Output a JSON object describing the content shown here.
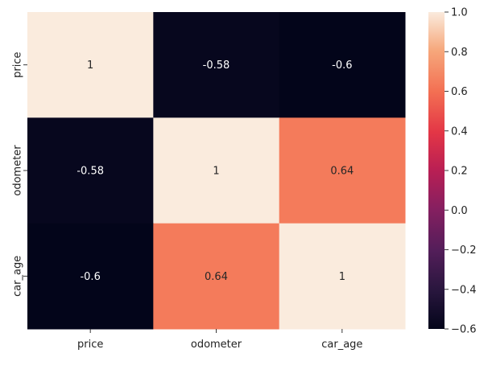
{
  "chart_data": {
    "type": "heatmap",
    "title": "",
    "xlabel": "",
    "ylabel": "",
    "x_categories": [
      "price",
      "odometer",
      "car_age"
    ],
    "y_categories": [
      "price",
      "odometer",
      "car_age"
    ],
    "values": [
      [
        1,
        -0.58,
        -0.6
      ],
      [
        -0.58,
        1,
        0.64
      ],
      [
        -0.6,
        0.64,
        1
      ]
    ],
    "annotations": [
      [
        "1",
        "-0.58",
        "-0.6"
      ],
      [
        "-0.58",
        "1",
        "0.64"
      ],
      [
        "-0.6",
        "0.64",
        "1"
      ]
    ],
    "colormap": "rocket",
    "colorbar": {
      "range": [
        -0.6,
        1.0
      ],
      "ticks": [
        1.0,
        0.8,
        0.6,
        0.4,
        0.2,
        0.0,
        -0.2,
        -0.4,
        -0.6
      ],
      "tick_labels": [
        "1.0",
        "0.8",
        "0.6",
        "0.4",
        "0.2",
        "0.0",
        "−0.2",
        "−0.4",
        "−0.6"
      ]
    },
    "grid": false,
    "legend": "colorbar-right"
  }
}
